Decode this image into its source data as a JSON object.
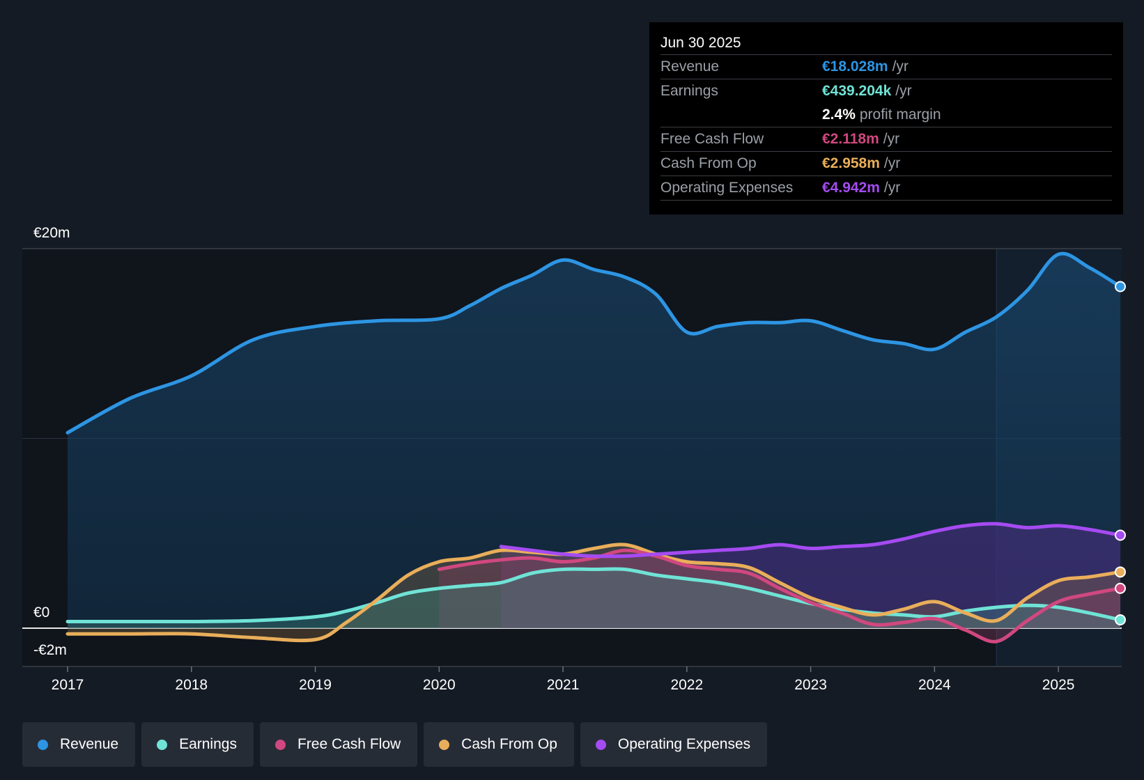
{
  "tooltip": {
    "date": "Jun 30 2025",
    "rows": {
      "revenue": {
        "label": "Revenue",
        "value": "€18.028m",
        "unit": "/yr"
      },
      "earnings": {
        "label": "Earnings",
        "value": "€439.204k",
        "unit": "/yr"
      },
      "margin": {
        "pct": "2.4%",
        "text": "profit margin"
      },
      "fcf": {
        "label": "Free Cash Flow",
        "value": "€2.118m",
        "unit": "/yr"
      },
      "cfo": {
        "label": "Cash From Op",
        "value": "€2.958m",
        "unit": "/yr"
      },
      "opex": {
        "label": "Operating Expenses",
        "value": "€4.942m",
        "unit": "/yr"
      }
    }
  },
  "legend": {
    "revenue": "Revenue",
    "earnings": "Earnings",
    "fcf": "Free Cash Flow",
    "cfo": "Cash From Op",
    "opex": "Operating Expenses"
  },
  "colors": {
    "revenue": "#2d95e3",
    "earnings": "#6fe3d6",
    "fcf": "#d0487f",
    "cfo": "#e9ae5a",
    "opex": "#a54bf2",
    "background": "#151b24"
  },
  "chart_data": {
    "type": "area",
    "title": "",
    "xlabel": "",
    "ylabel": "",
    "ylim": [
      -2,
      20
    ],
    "ytick_labels": [
      "€20m",
      "€0",
      "-€2m"
    ],
    "xtick_labels": [
      "2017",
      "2018",
      "2019",
      "2020",
      "2021",
      "2022",
      "2023",
      "2024",
      "2025"
    ],
    "xlim": [
      2017.0,
      2025.5
    ],
    "highlight_start": 2024.5,
    "series": [
      {
        "key": "revenue",
        "name": "Revenue",
        "points": [
          [
            2017.0,
            10.3
          ],
          [
            2017.5,
            12.1
          ],
          [
            2018.0,
            13.3
          ],
          [
            2018.5,
            15.2
          ],
          [
            2019.0,
            15.9
          ],
          [
            2019.5,
            16.2
          ],
          [
            2020.0,
            16.3
          ],
          [
            2020.25,
            17.0
          ],
          [
            2020.5,
            17.9
          ],
          [
            2020.75,
            18.6
          ],
          [
            2021.0,
            19.4
          ],
          [
            2021.25,
            18.9
          ],
          [
            2021.5,
            18.5
          ],
          [
            2021.75,
            17.6
          ],
          [
            2022.0,
            15.6
          ],
          [
            2022.25,
            15.9
          ],
          [
            2022.5,
            16.1
          ],
          [
            2022.75,
            16.1
          ],
          [
            2023.0,
            16.2
          ],
          [
            2023.25,
            15.7
          ],
          [
            2023.5,
            15.2
          ],
          [
            2023.75,
            15.0
          ],
          [
            2024.0,
            14.7
          ],
          [
            2024.25,
            15.6
          ],
          [
            2024.5,
            16.4
          ],
          [
            2024.75,
            17.8
          ],
          [
            2025.0,
            19.7
          ],
          [
            2025.25,
            19.0
          ],
          [
            2025.5,
            18.0
          ]
        ]
      },
      {
        "key": "earnings",
        "name": "Earnings",
        "points": [
          [
            2017.0,
            0.35
          ],
          [
            2017.5,
            0.35
          ],
          [
            2018.0,
            0.35
          ],
          [
            2018.5,
            0.4
          ],
          [
            2019.0,
            0.6
          ],
          [
            2019.25,
            0.9
          ],
          [
            2019.5,
            1.35
          ],
          [
            2019.75,
            1.85
          ],
          [
            2020.0,
            2.1
          ],
          [
            2020.25,
            2.25
          ],
          [
            2020.5,
            2.4
          ],
          [
            2020.75,
            2.9
          ],
          [
            2021.0,
            3.1
          ],
          [
            2021.25,
            3.1
          ],
          [
            2021.5,
            3.1
          ],
          [
            2021.75,
            2.8
          ],
          [
            2022.0,
            2.6
          ],
          [
            2022.25,
            2.4
          ],
          [
            2022.5,
            2.1
          ],
          [
            2022.75,
            1.7
          ],
          [
            2023.0,
            1.3
          ],
          [
            2023.25,
            1.0
          ],
          [
            2023.5,
            0.8
          ],
          [
            2023.75,
            0.7
          ],
          [
            2024.0,
            0.6
          ],
          [
            2024.25,
            0.9
          ],
          [
            2024.5,
            1.1
          ],
          [
            2024.75,
            1.2
          ],
          [
            2025.0,
            1.1
          ],
          [
            2025.25,
            0.8
          ],
          [
            2025.5,
            0.44
          ]
        ]
      },
      {
        "key": "fcf",
        "name": "Free Cash Flow",
        "points": [
          [
            2020.0,
            3.1
          ],
          [
            2020.25,
            3.4
          ],
          [
            2020.5,
            3.6
          ],
          [
            2020.75,
            3.7
          ],
          [
            2021.0,
            3.5
          ],
          [
            2021.25,
            3.7
          ],
          [
            2021.5,
            4.1
          ],
          [
            2021.75,
            3.8
          ],
          [
            2022.0,
            3.3
          ],
          [
            2022.25,
            3.1
          ],
          [
            2022.5,
            2.9
          ],
          [
            2022.75,
            2.1
          ],
          [
            2023.0,
            1.35
          ],
          [
            2023.25,
            0.8
          ],
          [
            2023.5,
            0.2
          ],
          [
            2023.75,
            0.3
          ],
          [
            2024.0,
            0.5
          ],
          [
            2024.25,
            -0.1
          ],
          [
            2024.5,
            -0.7
          ],
          [
            2024.75,
            0.4
          ],
          [
            2025.0,
            1.4
          ],
          [
            2025.25,
            1.8
          ],
          [
            2025.5,
            2.1
          ]
        ]
      },
      {
        "key": "cfo",
        "name": "Cash From Op",
        "points": [
          [
            2017.0,
            -0.3
          ],
          [
            2017.5,
            -0.3
          ],
          [
            2018.0,
            -0.3
          ],
          [
            2018.5,
            -0.5
          ],
          [
            2019.0,
            -0.6
          ],
          [
            2019.25,
            0.3
          ],
          [
            2019.5,
            1.5
          ],
          [
            2019.75,
            2.8
          ],
          [
            2020.0,
            3.5
          ],
          [
            2020.25,
            3.7
          ],
          [
            2020.5,
            4.1
          ],
          [
            2020.75,
            4.0
          ],
          [
            2021.0,
            3.9
          ],
          [
            2021.25,
            4.2
          ],
          [
            2021.5,
            4.4
          ],
          [
            2021.75,
            3.9
          ],
          [
            2022.0,
            3.5
          ],
          [
            2022.25,
            3.4
          ],
          [
            2022.5,
            3.2
          ],
          [
            2022.75,
            2.4
          ],
          [
            2023.0,
            1.6
          ],
          [
            2023.25,
            1.1
          ],
          [
            2023.5,
            0.7
          ],
          [
            2023.75,
            1.0
          ],
          [
            2024.0,
            1.4
          ],
          [
            2024.25,
            0.8
          ],
          [
            2024.5,
            0.4
          ],
          [
            2024.75,
            1.6
          ],
          [
            2025.0,
            2.5
          ],
          [
            2025.25,
            2.7
          ],
          [
            2025.5,
            2.96
          ]
        ]
      },
      {
        "key": "opex",
        "name": "Operating Expenses",
        "points": [
          [
            2020.5,
            4.3
          ],
          [
            2020.75,
            4.1
          ],
          [
            2021.0,
            3.9
          ],
          [
            2021.25,
            3.8
          ],
          [
            2021.5,
            3.8
          ],
          [
            2021.75,
            3.9
          ],
          [
            2022.0,
            4.0
          ],
          [
            2022.25,
            4.1
          ],
          [
            2022.5,
            4.2
          ],
          [
            2022.75,
            4.4
          ],
          [
            2023.0,
            4.2
          ],
          [
            2023.25,
            4.3
          ],
          [
            2023.5,
            4.4
          ],
          [
            2023.75,
            4.7
          ],
          [
            2024.0,
            5.1
          ],
          [
            2024.25,
            5.4
          ],
          [
            2024.5,
            5.5
          ],
          [
            2024.75,
            5.3
          ],
          [
            2025.0,
            5.4
          ],
          [
            2025.25,
            5.2
          ],
          [
            2025.5,
            4.9
          ]
        ]
      }
    ]
  }
}
